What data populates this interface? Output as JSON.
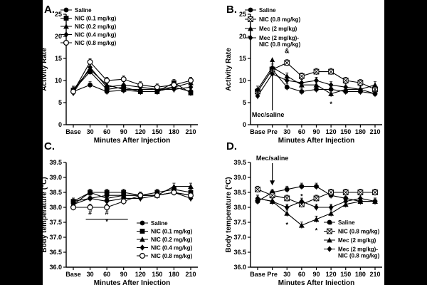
{
  "chart_data": [
    {
      "type": "line",
      "panel": "A.",
      "xlabel": "Minutes After Injection",
      "ylabel": "Activity Rate",
      "ylim": [
        0,
        25
      ],
      "yticks": [
        "0",
        "5",
        "10",
        "15",
        "20",
        "25"
      ],
      "x_categories": [
        "Base",
        "30",
        "60",
        "90",
        "120",
        "150",
        "180",
        "210"
      ],
      "series": [
        {
          "name": "Saline",
          "marker": "circle",
          "values": [
            7.5,
            9.0,
            7.5,
            7.8,
            7.5,
            7.5,
            8.5,
            7.5
          ]
        },
        {
          "name": "NIC (0.1 mg/kg)",
          "marker": "square",
          "values": [
            7.8,
            12.0,
            8.0,
            8.5,
            7.5,
            7.5,
            9.5,
            7.2
          ]
        },
        {
          "name": "NIC (0.2 mg/kg)",
          "marker": "triangle",
          "values": [
            8.0,
            12.5,
            9.0,
            8.0,
            8.0,
            8.0,
            8.5,
            9.5
          ]
        },
        {
          "name": "NIC (0.4 mg/kg)",
          "marker": "diamond",
          "values": [
            7.2,
            13.0,
            8.5,
            9.0,
            8.5,
            8.0,
            8.0,
            8.5
          ]
        },
        {
          "name": "NIC (0.8 mg/kg)",
          "marker": "circle-open",
          "values": [
            7.5,
            14.2,
            10.0,
            10.3,
            9.0,
            8.5,
            9.0,
            10.0
          ]
        }
      ]
    },
    {
      "type": "line",
      "panel": "B.",
      "xlabel": "Minutes After Injection",
      "ylabel": "Activity Rate",
      "ylim": [
        0,
        25
      ],
      "yticks": [
        "0",
        "5",
        "10",
        "15",
        "20",
        "25"
      ],
      "x_categories": [
        "Base",
        "Pre",
        "30",
        "60",
        "90",
        "120",
        "150",
        "180",
        "210"
      ],
      "annotations": [
        {
          "text": "&",
          "at_category": "30",
          "at_value": 16.2
        },
        {
          "text": "*",
          "at_category": "120",
          "at_value": 4.2
        }
      ],
      "arrow_label": "Mec/saline",
      "series": [
        {
          "name": "Saline",
          "marker": "circle",
          "values": [
            7.5,
            12.5,
            8.5,
            7.5,
            8.0,
            8.0,
            7.5,
            7.5,
            7.0
          ]
        },
        {
          "name": "NIC (0.8 mg/kg)",
          "marker": "x-square",
          "values": [
            7.5,
            12.5,
            14.0,
            11.0,
            12.0,
            12.0,
            10.0,
            9.5,
            8.0
          ]
        },
        {
          "name": "Mec (2 mg/kg)",
          "marker": "triangle",
          "values": [
            8.0,
            13.0,
            11.0,
            9.0,
            9.0,
            7.0,
            8.0,
            8.0,
            9.0
          ]
        },
        {
          "name": "Mec (2 mg/kg)- NIC (0.8 mg/kg)",
          "marker": "diamond",
          "values": [
            6.5,
            11.5,
            10.0,
            9.5,
            10.0,
            9.0,
            8.5,
            8.0,
            7.0
          ]
        }
      ]
    },
    {
      "type": "line",
      "panel": "C.",
      "xlabel": "Minutes After Injection",
      "ylabel": "Body temperature (°C)",
      "ylim": [
        36.0,
        39.5
      ],
      "yticks": [
        "36.0",
        "36.5",
        "37.0",
        "37.5",
        "38.0",
        "38.5",
        "39.0",
        "39.5"
      ],
      "x_categories": [
        "Base",
        "30",
        "60",
        "90",
        "120",
        "150",
        "180",
        "210"
      ],
      "annotations": [
        {
          "text": "#",
          "at_category": "30",
          "at_value": 37.75
        },
        {
          "text": "#",
          "at_category": "60",
          "at_value": 37.75
        },
        {
          "text": "*",
          "at_category": "60",
          "at_value": 37.45
        }
      ],
      "significance_bar": [
        "30",
        "90"
      ],
      "series": [
        {
          "name": "Saline",
          "marker": "circle",
          "values": [
            38.2,
            38.3,
            38.4,
            38.4,
            38.4,
            38.4,
            38.5,
            38.4
          ]
        },
        {
          "name": "NIC (0.1 mg/kg)",
          "marker": "square",
          "values": [
            38.2,
            38.5,
            38.5,
            38.5,
            38.4,
            38.5,
            38.6,
            38.5
          ]
        },
        {
          "name": "NIC (0.2 mg/kg)",
          "marker": "triangle",
          "values": [
            38.1,
            38.5,
            38.3,
            38.4,
            38.4,
            38.4,
            38.7,
            38.7
          ]
        },
        {
          "name": "NIC (0.4 mg/kg)",
          "marker": "diamond",
          "values": [
            38.1,
            38.3,
            38.2,
            38.3,
            38.3,
            38.4,
            38.5,
            38.3
          ]
        },
        {
          "name": "NIC (0.8 mg/kg)",
          "marker": "circle-open",
          "values": [
            38.0,
            38.0,
            38.0,
            38.2,
            38.4,
            38.4,
            38.5,
            38.4
          ]
        }
      ]
    },
    {
      "type": "line",
      "panel": "D.",
      "xlabel": "Minutes After Injection",
      "ylabel": "Body temperature (°C)",
      "ylim": [
        36.0,
        39.5
      ],
      "yticks": [
        "36.0",
        "36.5",
        "37.0",
        "37.5",
        "38.0",
        "38.5",
        "39.0",
        "39.5"
      ],
      "x_categories": [
        "Base",
        "Pre",
        "30",
        "60",
        "90",
        "120",
        "150",
        "180",
        "210"
      ],
      "arrow_label": "Mec/saline",
      "annotations": [
        {
          "text": "*",
          "at_category": "30",
          "at_value": 37.35
        },
        {
          "text": "*",
          "at_category": "60",
          "at_value": 38.3
        },
        {
          "text": "*",
          "at_category": "90",
          "at_value": 37.15
        },
        {
          "text": "*",
          "at_category": "120",
          "at_value": 37.35
        }
      ],
      "series": [
        {
          "name": "Saline",
          "marker": "circle",
          "values": [
            38.2,
            38.5,
            38.6,
            38.7,
            38.7,
            38.4,
            38.3,
            38.2,
            38.2
          ]
        },
        {
          "name": "NIC (0.8 mg/kg)",
          "marker": "x-square",
          "values": [
            38.6,
            38.4,
            38.3,
            38.1,
            38.3,
            38.5,
            38.5,
            38.5,
            38.5
          ]
        },
        {
          "name": "Mec (2 mg/kg)",
          "marker": "triangle",
          "values": [
            38.3,
            38.2,
            37.8,
            37.4,
            37.6,
            37.8,
            38.1,
            38.2,
            38.2
          ]
        },
        {
          "name": "Mec (2 mg/kg)- NIC (0.8 mg/kg)",
          "marker": "diamond",
          "values": [
            38.3,
            38.2,
            38.0,
            38.2,
            38.0,
            38.0,
            38.2,
            38.3,
            38.2
          ]
        }
      ]
    }
  ]
}
